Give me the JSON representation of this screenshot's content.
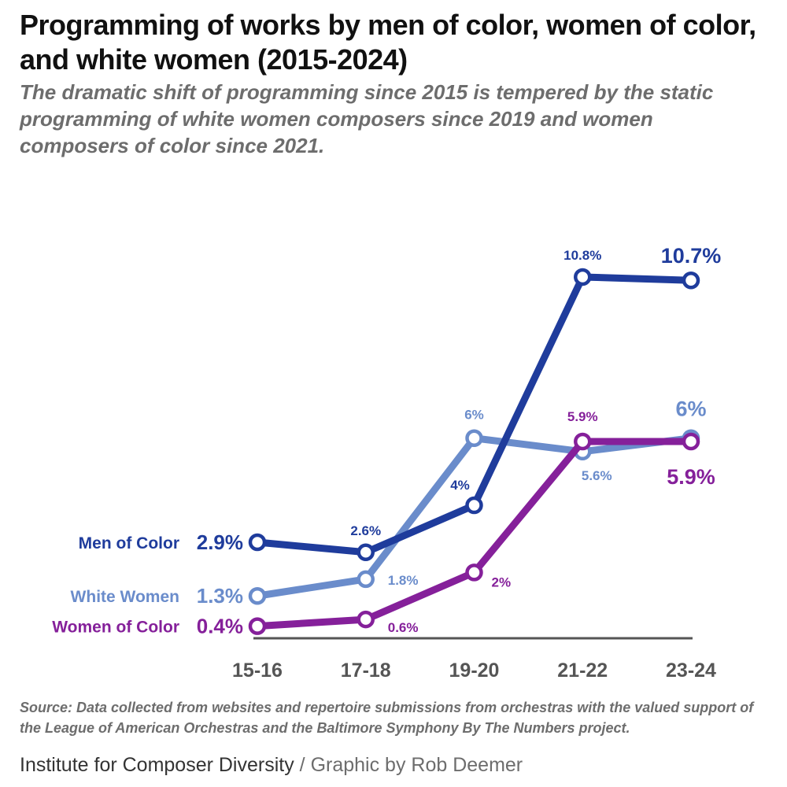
{
  "header": {
    "title": "Programming of works by men of color, women of color, and white women (2015-2024)",
    "subtitle": "The dramatic shift of programming since 2015 is tempered by the static programming of white women composers since 2019 and women composers of color since 2021."
  },
  "footer": {
    "source": "Source: Data collected from websites and repertoire submissions from orchestras with the valued support of the League of American Orchestras and the Baltimore Symphony By The Numbers project.",
    "org": "Institute for Composer Diversity",
    "separator": " / ",
    "byline": "Graphic by Rob Deemer"
  },
  "chart_data": {
    "type": "line",
    "title": "Programming of works by men of color, women of color, and white women (2015-2024)",
    "xlabel": "",
    "ylabel": "",
    "categories": [
      "15-16",
      "17-18",
      "19-20",
      "21-22",
      "23-24"
    ],
    "ylim": [
      0,
      11
    ],
    "grid": false,
    "legend": "inline-left",
    "series": [
      {
        "name": "Men of Color",
        "color": "#1f3c9c",
        "values": [
          2.9,
          2.6,
          4,
          10.8,
          10.7
        ],
        "labels": [
          "2.9%",
          "2.6%",
          "4%",
          "10.8%",
          "10.7%"
        ]
      },
      {
        "name": "White Women",
        "color": "#6a8ccb",
        "values": [
          1.3,
          1.8,
          6,
          5.6,
          6
        ],
        "labels": [
          "1.3%",
          "1.8%",
          "6%",
          "5.6%",
          "6%"
        ]
      },
      {
        "name": "Women of Color",
        "color": "#85209a",
        "values": [
          0.4,
          0.6,
          2,
          5.9,
          5.9
        ],
        "labels": [
          "0.4%",
          "0.6%",
          "2%",
          "5.9%",
          "5.9%"
        ]
      }
    ]
  }
}
